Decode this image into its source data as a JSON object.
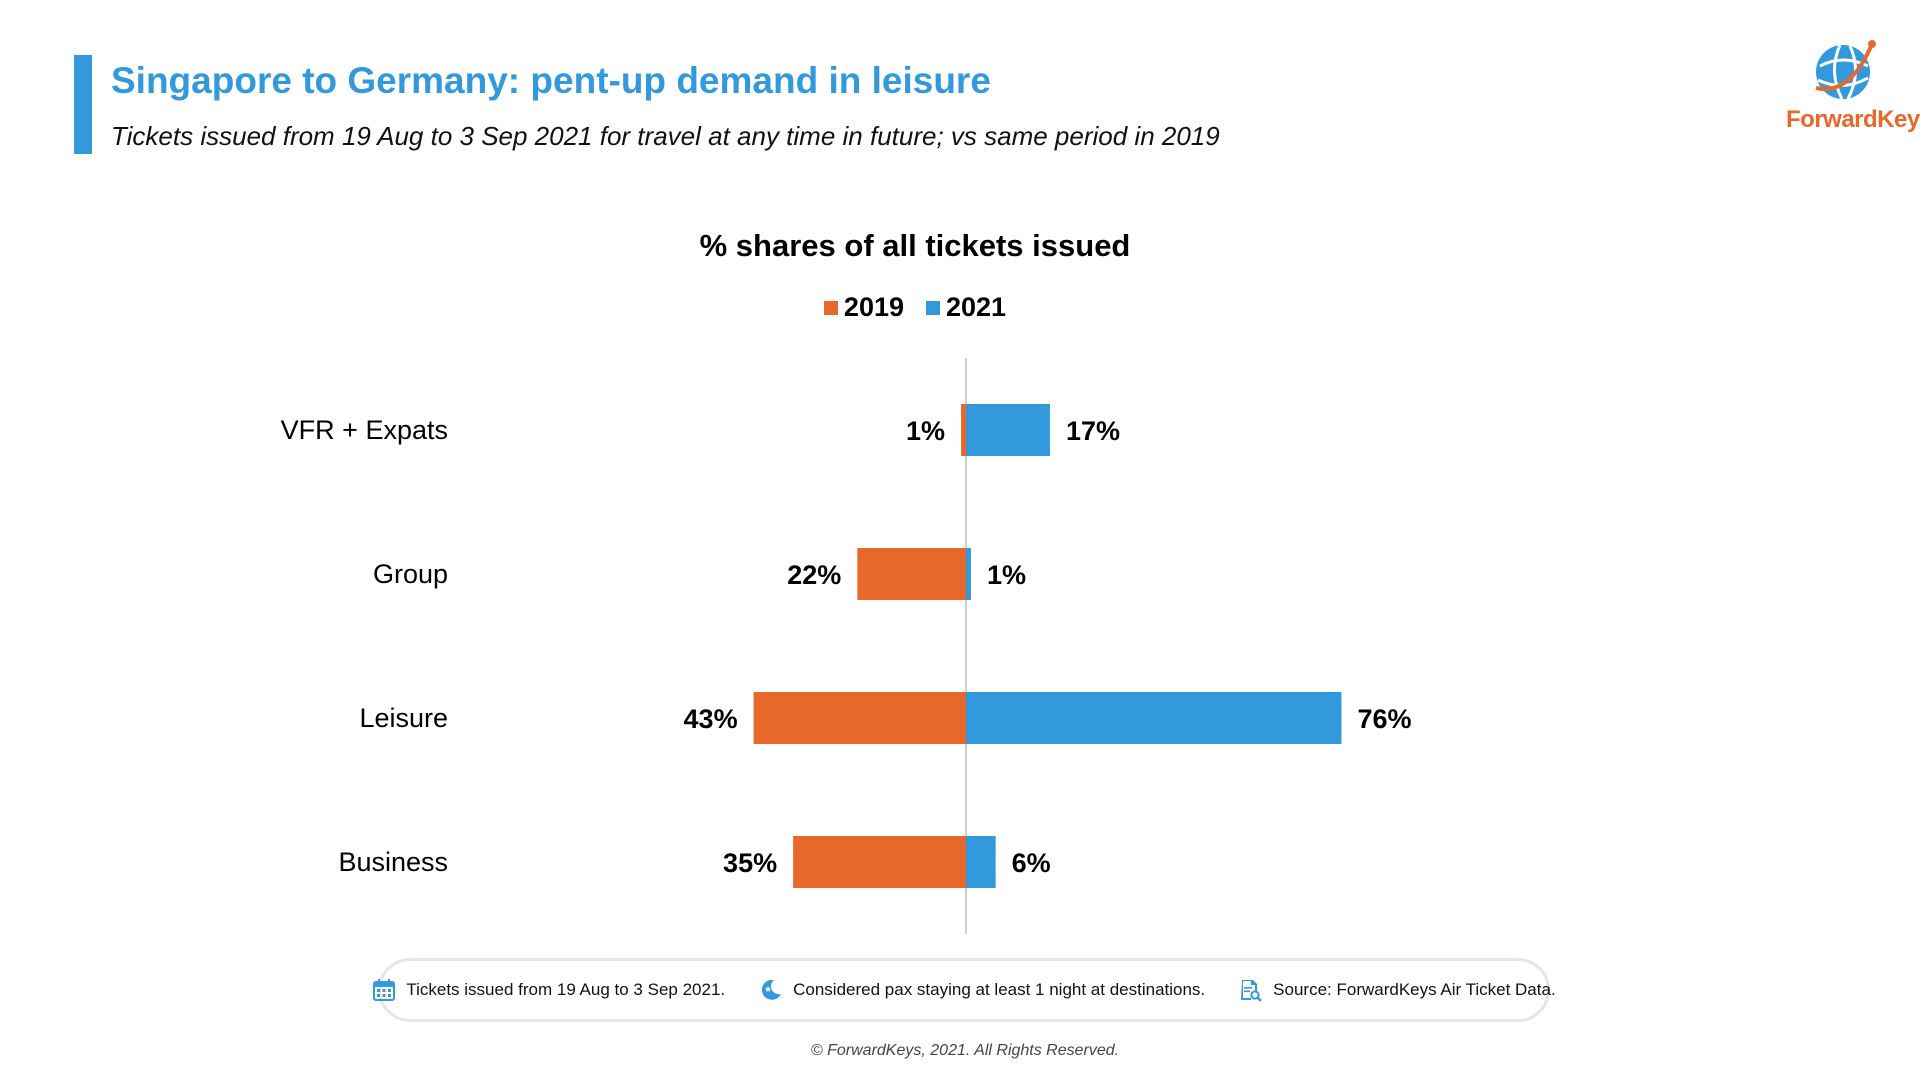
{
  "header": {
    "title": "Singapore to Germany: pent-up demand in leisure",
    "subtitle": "Tickets issued from 19 Aug to 3 Sep 2021 for travel at any time in future; vs same period in 2019",
    "logo_text": "ForwardKeys"
  },
  "colors": {
    "accent": "#3399dd",
    "series_2019": "#e8672a",
    "series_2021": "#3399dd",
    "brand_orange": "#e8672a"
  },
  "chart_data": {
    "type": "bar",
    "orientation": "horizontal-diverging",
    "title": "% shares of all tickets issued",
    "categories": [
      "VFR + Expats",
      "Group",
      "Leisure",
      "Business"
    ],
    "series": [
      {
        "name": "2019",
        "values": [
          1,
          22,
          43,
          35
        ],
        "labels": [
          "1%",
          "22%",
          "43%",
          "35%"
        ],
        "direction": "left"
      },
      {
        "name": "2021",
        "values": [
          17,
          1,
          76,
          6
        ],
        "labels": [
          "17%",
          "1%",
          "76%",
          "6%"
        ],
        "direction": "right"
      }
    ],
    "unit": "%",
    "legend_position": "top-center",
    "grid": false
  },
  "footer": {
    "items": [
      {
        "icon": "calendar-icon",
        "text": "Tickets issued from 19 Aug to 3 Sep 2021."
      },
      {
        "icon": "moon-icon",
        "text": "Considered pax staying at least 1 night at destinations."
      },
      {
        "icon": "document-search-icon",
        "text": "Source: ForwardKeys Air Ticket Data."
      }
    ],
    "copyright": "© ForwardKeys, 2021. All Rights Reserved."
  }
}
